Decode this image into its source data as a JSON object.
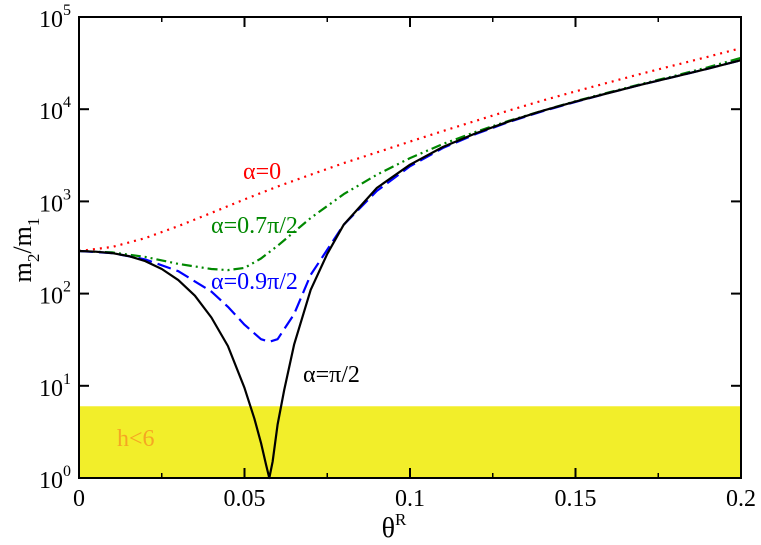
{
  "chart_data": {
    "type": "line",
    "title": "",
    "xlabel": {
      "base": "θ",
      "sup": "R"
    },
    "ylabel": {
      "m": "m",
      "sub2": "2",
      "slash": "/m",
      "sub1": "1"
    },
    "x_scale": "linear",
    "y_scale": "log",
    "xlim": [
      0,
      0.2
    ],
    "ylim": [
      1,
      100000
    ],
    "grid": false,
    "legend": "none",
    "x_ticks": [
      {
        "value": 0,
        "label": "0"
      },
      {
        "value": 0.05,
        "label": "0.05"
      },
      {
        "value": 0.1,
        "label": "0.1"
      },
      {
        "value": 0.15,
        "label": "0.15"
      },
      {
        "value": 0.2,
        "label": "0.2"
      }
    ],
    "y_ticks": [
      {
        "value": 1,
        "base": "10",
        "exp": "0"
      },
      {
        "value": 10,
        "base": "10",
        "exp": "1"
      },
      {
        "value": 100,
        "base": "10",
        "exp": "2"
      },
      {
        "value": 1000,
        "base": "10",
        "exp": "3"
      },
      {
        "value": 10000,
        "base": "10",
        "exp": "4"
      },
      {
        "value": 100000,
        "base": "10",
        "exp": "5"
      }
    ],
    "region": {
      "label": "h<6",
      "y_from": 1,
      "y_to": 6,
      "fill": "#f2ee2a",
      "text_color": "#f5a623"
    },
    "series": [
      {
        "key": "alpha0",
        "color": "#ff0000",
        "dash": "2,5",
        "x": [
          0,
          0.01,
          0.02,
          0.03,
          0.04,
          0.05,
          0.06,
          0.07,
          0.08,
          0.09,
          0.1,
          0.11,
          0.12,
          0.13,
          0.14,
          0.15,
          0.16,
          0.17,
          0.18,
          0.19,
          0.2
        ],
        "y": [
          290,
          320,
          400,
          540,
          750,
          1050,
          1450,
          1950,
          2600,
          3400,
          4450,
          5800,
          7500,
          9700,
          12400,
          15600,
          19500,
          24300,
          30000,
          37000,
          46000
        ]
      },
      {
        "key": "alpha07",
        "color": "#008800",
        "dash": "10,4,2,4,2,4",
        "x": [
          0,
          0.01,
          0.02,
          0.03,
          0.04,
          0.045,
          0.05,
          0.055,
          0.06,
          0.07,
          0.08,
          0.09,
          0.1,
          0.11,
          0.12,
          0.13,
          0.14,
          0.15,
          0.16,
          0.17,
          0.18,
          0.19,
          0.2
        ],
        "y": [
          290,
          280,
          250,
          210,
          185,
          180,
          190,
          240,
          330,
          660,
          1200,
          1950,
          2950,
          4200,
          5700,
          7500,
          9600,
          12200,
          15200,
          18800,
          23000,
          28500,
          36000
        ]
      },
      {
        "key": "alpha09",
        "color": "#0000ff",
        "dash": "14,6",
        "x": [
          0,
          0.01,
          0.02,
          0.03,
          0.04,
          0.045,
          0.05,
          0.055,
          0.0575,
          0.06,
          0.065,
          0.07,
          0.08,
          0.09,
          0.1,
          0.11,
          0.12,
          0.13,
          0.14,
          0.15,
          0.16,
          0.17,
          0.18,
          0.19,
          0.2
        ],
        "y": [
          290,
          275,
          235,
          175,
          105,
          72,
          46,
          32,
          30,
          32,
          60,
          160,
          560,
          1300,
          2400,
          3800,
          5400,
          7300,
          9500,
          12000,
          15000,
          18500,
          22500,
          27500,
          34000
        ]
      },
      {
        "key": "alpha10",
        "color": "#000000",
        "dash": "",
        "x": [
          0,
          0.005,
          0.01,
          0.015,
          0.02,
          0.025,
          0.03,
          0.035,
          0.04,
          0.045,
          0.05,
          0.053,
          0.055,
          0.0565,
          0.0575,
          0.0585,
          0.06,
          0.062,
          0.065,
          0.07,
          0.075,
          0.08,
          0.09,
          0.1,
          0.11,
          0.12,
          0.13,
          0.14,
          0.15,
          0.16,
          0.17,
          0.18,
          0.19,
          0.2
        ],
        "y": [
          290,
          285,
          275,
          255,
          225,
          185,
          140,
          95,
          55,
          27,
          9.5,
          4.4,
          2.4,
          1.4,
          1.0,
          1.5,
          3.8,
          9,
          28,
          110,
          270,
          560,
          1400,
          2500,
          3900,
          5500,
          7400,
          9600,
          12100,
          15000,
          18500,
          22500,
          27500,
          34000
        ]
      }
    ],
    "annotations": [
      {
        "key": "a0",
        "text": "α=0",
        "color": "#ff0000"
      },
      {
        "key": "a07",
        "text": "α=0.7π/2",
        "color": "#008800"
      },
      {
        "key": "a09",
        "text": "α=0.9π/2",
        "color": "#0000ff"
      },
      {
        "key": "a10",
        "text": "α=π/2",
        "color": "#000000"
      }
    ]
  }
}
